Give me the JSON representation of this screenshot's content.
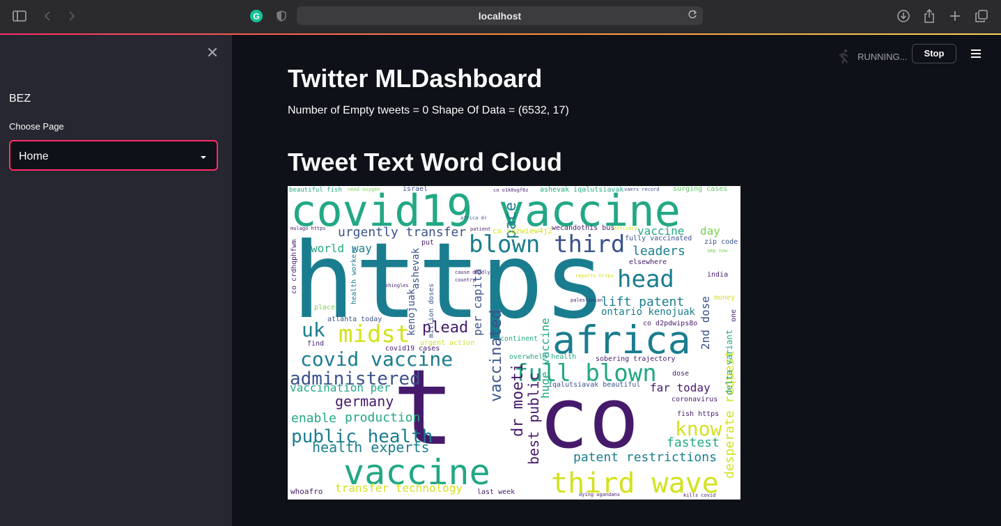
{
  "browser": {
    "url": "localhost"
  },
  "sidebar": {
    "title": "BEZ",
    "select_label": "Choose Page",
    "selected_page": "Home"
  },
  "main": {
    "status": "RUNNING...",
    "stop_label": "Stop",
    "title": "Twitter MLDashboard",
    "info": "Number of Empty tweets = 0 Shape Of Data = (6532, 17)",
    "wordcloud_title": "Tweet Text Word Cloud"
  },
  "colors": {
    "accent": "#ff2b6a",
    "bg": "#0e1117",
    "sidebar": "#262730"
  },
  "wordcloud": {
    "words": [
      "beautiful fish",
      "need oxygen",
      "israel",
      "co o1k0ugf6z",
      "ashevak iqalutsiavak",
      "vaers record",
      "surging cases",
      "covid19 vaccine",
      "africa dr",
      "pace",
      "urgently transfer",
      "mulago https",
      "patient",
      "co xozwiew4j2",
      "wecandothis bus",
      "efficacy",
      "vaccine",
      "day",
      "fully vaccinated",
      "zip code",
      "world",
      "way",
      "put",
      "blown",
      "third",
      "leaders",
      "amp now",
      "https",
      "t",
      "elsewhere",
      "head",
      "cause deadly",
      "reports https",
      "india",
      "co crdhqphfwm",
      "shingles",
      "ashevak",
      "country",
      "kenojuak",
      "lift patent",
      "money",
      "place",
      "health workers",
      "palestinian",
      "ontario kenojuak",
      "atlanta today",
      "plead",
      "uk",
      "midst",
      "africa",
      "co d2pdwips8o",
      "one",
      "million doses",
      "per capita",
      "find",
      "covid19 cases",
      "urgent action",
      "continent",
      "2nd dose",
      "covid vaccine",
      "full blown",
      "overwhelm health",
      "sobering trajectory",
      "administered",
      "vaccinated",
      "iqalutsiavak beautiful",
      "far today",
      "dose",
      "vaccination per",
      "germany",
      "huge vaccine",
      "co",
      "coronavirus",
      "enable",
      "production",
      "fish https",
      "public health",
      "dr moeti",
      "know",
      "best public",
      "fastest",
      "health experts",
      "patent restrictions",
      "vaccine",
      "third wave",
      "transfer technology",
      "whoafro",
      "last week",
      "dying ugandans",
      "kills covid",
      "desperate request",
      "delta variant"
    ]
  }
}
